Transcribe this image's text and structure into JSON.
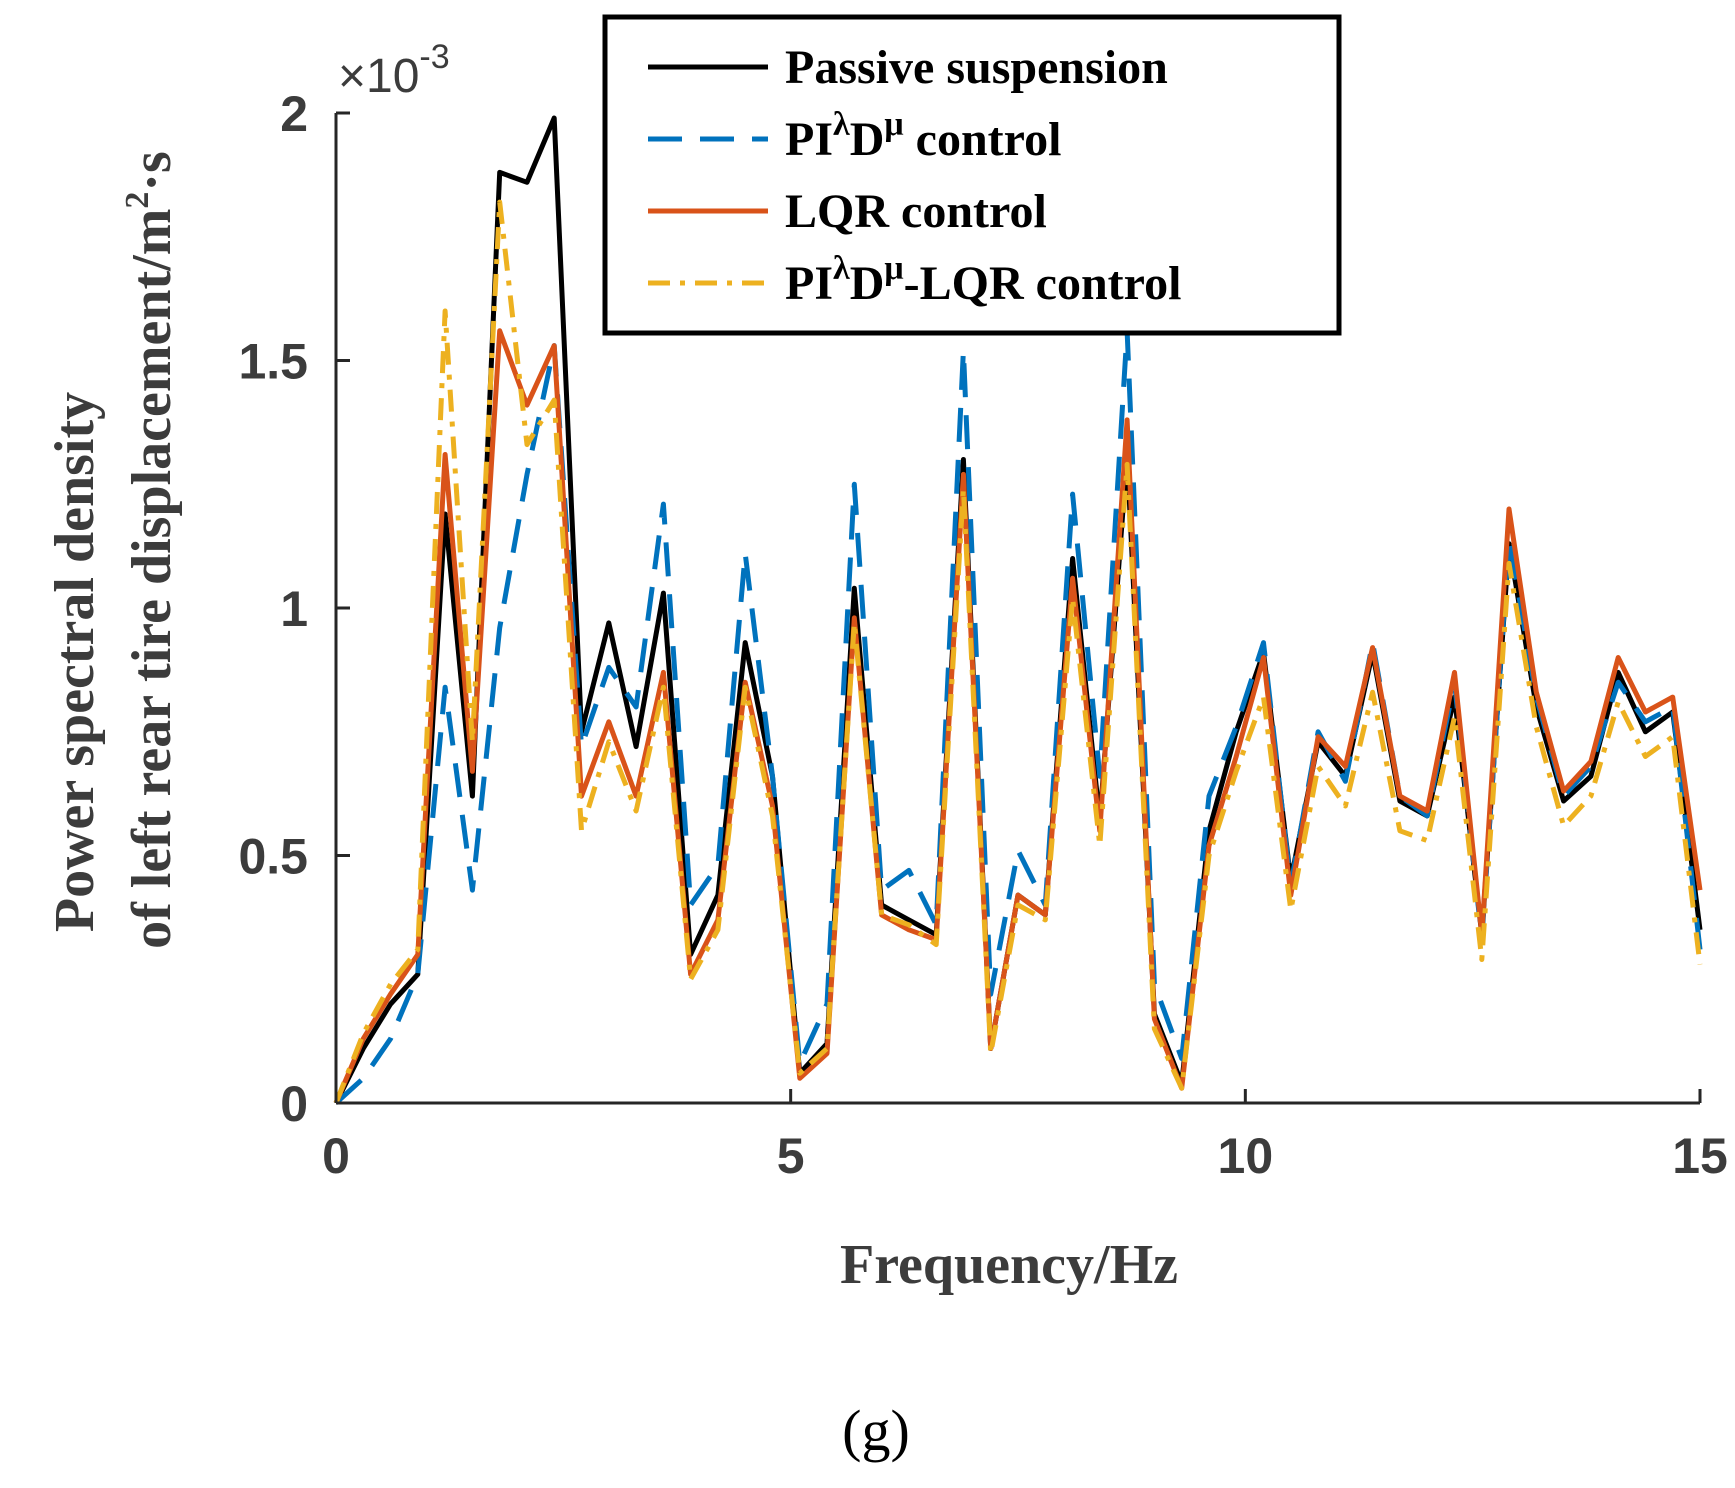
{
  "chart_data": {
    "type": "line",
    "title": "",
    "caption": "(g)",
    "xlabel": "Frequency/Hz",
    "ylabel_lines": [
      "Power spectral density",
      "of left rear tire displacement/m",
      "2",
      "·s"
    ],
    "y_exponent": "×10",
    "y_exponent_power": "-3",
    "xlim": [
      0,
      15
    ],
    "ylim": [
      0,
      2
    ],
    "xticks": [
      0,
      5,
      10,
      15
    ],
    "xtick_labels": [
      "0",
      "5",
      "10",
      "15"
    ],
    "yticks": [
      0,
      0.5,
      1,
      1.5,
      2
    ],
    "ytick_labels": [
      "0",
      "0.5",
      "1",
      "1.5",
      "2"
    ],
    "grid": false,
    "legend_position": "top-center",
    "x": [
      0,
      0.3,
      0.6,
      0.9,
      1.2,
      1.5,
      1.8,
      2.1,
      2.4,
      2.7,
      3.0,
      3.3,
      3.6,
      3.9,
      4.2,
      4.5,
      4.8,
      5.1,
      5.4,
      5.7,
      6.0,
      6.3,
      6.6,
      6.9,
      7.2,
      7.5,
      7.8,
      8.1,
      8.4,
      8.7,
      9.0,
      9.3,
      9.6,
      9.9,
      10.2,
      10.5,
      10.8,
      11.1,
      11.4,
      11.7,
      12.0,
      12.3,
      12.6,
      12.9,
      13.2,
      13.5,
      13.8,
      14.1,
      14.4,
      14.7,
      15.0
    ],
    "series": [
      {
        "name": "Passive suspension",
        "color": "#000000",
        "dash": "",
        "label_parts": [
          "Passive suspension"
        ],
        "values": [
          0,
          0.11,
          0.2,
          0.26,
          1.19,
          0.62,
          1.88,
          1.86,
          1.99,
          0.75,
          0.97,
          0.72,
          1.03,
          0.3,
          0.42,
          0.93,
          0.66,
          0.06,
          0.12,
          1.04,
          0.4,
          0.37,
          0.34,
          1.3,
          0.11,
          0.42,
          0.38,
          1.1,
          0.57,
          1.31,
          0.18,
          0.04,
          0.55,
          0.75,
          0.91,
          0.45,
          0.73,
          0.66,
          0.91,
          0.61,
          0.58,
          0.82,
          0.34,
          1.13,
          0.8,
          0.61,
          0.66,
          0.87,
          0.75,
          0.79,
          0.35
        ]
      },
      {
        "name": "PIλDμ control",
        "color": "#0072bd",
        "dash": "34,18",
        "label_parts": [
          "PI",
          "λ",
          "D",
          "μ",
          " control"
        ],
        "values": [
          0,
          0.05,
          0.13,
          0.26,
          0.84,
          0.43,
          0.96,
          1.27,
          1.53,
          0.72,
          0.88,
          0.8,
          1.21,
          0.4,
          0.48,
          1.11,
          0.66,
          0.08,
          0.2,
          1.25,
          0.43,
          0.47,
          0.36,
          1.52,
          0.22,
          0.51,
          0.4,
          1.23,
          0.66,
          1.56,
          0.24,
          0.09,
          0.62,
          0.76,
          0.93,
          0.44,
          0.75,
          0.65,
          0.93,
          0.62,
          0.58,
          0.85,
          0.33,
          1.14,
          0.82,
          0.62,
          0.68,
          0.85,
          0.77,
          0.8,
          0.31
        ]
      },
      {
        "name": "LQR control",
        "color": "#d95319",
        "dash": "",
        "label_parts": [
          "LQR control"
        ],
        "values": [
          0,
          0.13,
          0.22,
          0.3,
          1.31,
          0.67,
          1.56,
          1.41,
          1.53,
          0.62,
          0.77,
          0.62,
          0.87,
          0.26,
          0.37,
          0.85,
          0.6,
          0.05,
          0.1,
          0.98,
          0.38,
          0.35,
          0.33,
          1.27,
          0.11,
          0.42,
          0.38,
          1.06,
          0.55,
          1.38,
          0.17,
          0.03,
          0.52,
          0.7,
          0.9,
          0.42,
          0.74,
          0.68,
          0.92,
          0.62,
          0.59,
          0.87,
          0.34,
          1.2,
          0.83,
          0.63,
          0.69,
          0.9,
          0.79,
          0.82,
          0.43
        ]
      },
      {
        "name": "PIλDμ-LQR control",
        "color": "#edb120",
        "dash": "22,10,5,10",
        "label_parts": [
          "PI",
          "λ",
          "D",
          "μ",
          "-LQR control"
        ],
        "values": [
          0,
          0.14,
          0.24,
          0.31,
          1.6,
          0.73,
          1.82,
          1.33,
          1.42,
          0.55,
          0.73,
          0.59,
          0.84,
          0.25,
          0.35,
          0.84,
          0.58,
          0.06,
          0.11,
          0.97,
          0.38,
          0.36,
          0.32,
          1.24,
          0.1,
          0.4,
          0.37,
          1.02,
          0.52,
          1.29,
          0.15,
          0.03,
          0.5,
          0.67,
          0.82,
          0.39,
          0.68,
          0.6,
          0.83,
          0.55,
          0.53,
          0.78,
          0.29,
          1.09,
          0.76,
          0.56,
          0.62,
          0.81,
          0.7,
          0.74,
          0.28
        ]
      }
    ]
  }
}
